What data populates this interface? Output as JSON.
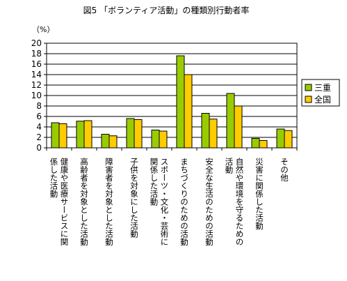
{
  "chart_data": {
    "type": "bar",
    "title": "図5 「ボランティア活動」の種類別行動者率",
    "ylabel": "（%）",
    "ylim": [
      0,
      20
    ],
    "yticks": [
      0,
      2,
      4,
      6,
      8,
      10,
      12,
      14,
      16,
      18,
      20
    ],
    "grid": true,
    "legend": "right",
    "categories": [
      [
        "健康や医療サービスに関",
        "係した活動"
      ],
      [
        "高齢者を対象とした活動"
      ],
      [
        "障害者を対象とした活動"
      ],
      [
        "子供を対象にした活動"
      ],
      [
        "スポーツ・文化・芸術に",
        "関係した活動"
      ],
      [
        "まちづくりのための活動"
      ],
      [
        "安全な生活のための活動"
      ],
      [
        "自然や環境を守るための",
        "活動"
      ],
      [
        "災害に関係した活動"
      ],
      [
        "その他"
      ]
    ],
    "series": [
      {
        "name": "三重",
        "color": "#99cc00",
        "values": [
          4.8,
          5.1,
          2.6,
          5.6,
          3.4,
          17.6,
          6.6,
          10.4,
          1.8,
          3.6
        ]
      },
      {
        "name": "全国",
        "color": "#ffcc00",
        "values": [
          4.6,
          5.2,
          2.3,
          5.4,
          3.2,
          14.0,
          5.5,
          8.0,
          1.4,
          3.3
        ]
      }
    ]
  }
}
